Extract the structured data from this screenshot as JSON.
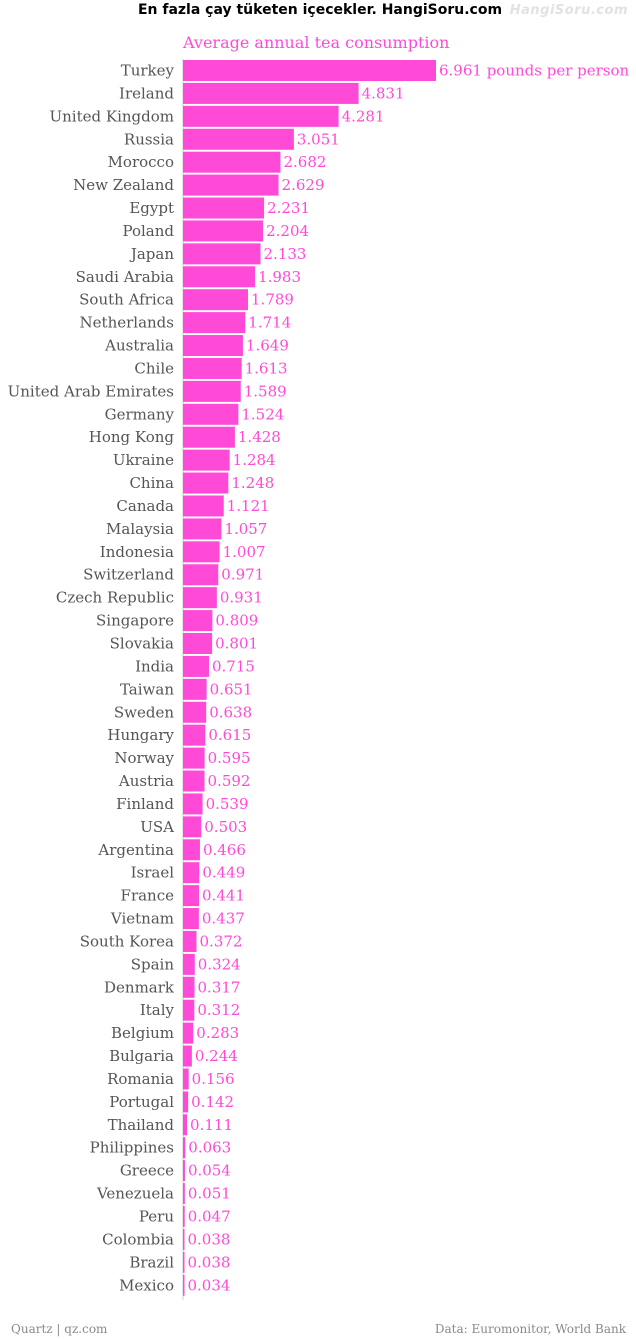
{
  "header": {
    "title": "En fazla çay tüketen içecekler. HangiSoru.com",
    "watermark": "HangiSoru.com"
  },
  "footer": {
    "source_left": "Quartz | qz.com",
    "source_right": "Data: Euromonitor, World Bank"
  },
  "colors": {
    "bar": "#ff4ad8",
    "label": "#555555",
    "value": "#ff4ad8"
  },
  "chart_data": {
    "type": "bar",
    "orientation": "horizontal",
    "title": "Average annual tea consumption",
    "first_value_suffix": " pounds per person",
    "categories": [
      "Turkey",
      "Ireland",
      "United Kingdom",
      "Russia",
      "Morocco",
      "New Zealand",
      "Egypt",
      "Poland",
      "Japan",
      "Saudi Arabia",
      "South Africa",
      "Netherlands",
      "Australia",
      "Chile",
      "United Arab Emirates",
      "Germany",
      "Hong Kong",
      "Ukraine",
      "China",
      "Canada",
      "Malaysia",
      "Indonesia",
      "Switzerland",
      "Czech Republic",
      "Singapore",
      "Slovakia",
      "India",
      "Taiwan",
      "Sweden",
      "Hungary",
      "Norway",
      "Austria",
      "Finland",
      "USA",
      "Argentina",
      "Israel",
      "France",
      "Vietnam",
      "South Korea",
      "Spain",
      "Denmark",
      "Italy",
      "Belgium",
      "Bulgaria",
      "Romania",
      "Portugal",
      "Thailand",
      "Philippines",
      "Greece",
      "Venezuela",
      "Peru",
      "Colombia",
      "Brazil",
      "Mexico"
    ],
    "values": [
      6.961,
      4.831,
      4.281,
      3.051,
      2.682,
      2.629,
      2.231,
      2.204,
      2.133,
      1.983,
      1.789,
      1.714,
      1.649,
      1.613,
      1.589,
      1.524,
      1.428,
      1.284,
      1.248,
      1.121,
      1.057,
      1.007,
      0.971,
      0.931,
      0.809,
      0.801,
      0.715,
      0.651,
      0.638,
      0.615,
      0.595,
      0.592,
      0.539,
      0.503,
      0.466,
      0.449,
      0.441,
      0.437,
      0.372,
      0.324,
      0.317,
      0.312,
      0.283,
      0.244,
      0.156,
      0.142,
      0.111,
      0.063,
      0.054,
      0.051,
      0.047,
      0.038,
      0.038,
      0.034
    ],
    "labels": [
      "6.961",
      "4.831",
      "4.281",
      "3.051",
      "2.682",
      "2.629",
      "2.231",
      "2.204",
      "2.133",
      "1.983",
      "1.789",
      "1.714",
      "1.649",
      "1.613",
      "1.589",
      "1.524",
      "1.428",
      "1.284",
      "1.248",
      "1.121",
      "1.057",
      "1.007",
      "0.971",
      "0.931",
      "0.809",
      "0.801",
      "0.715",
      "0.651",
      "0.638",
      "0.615",
      "0.595",
      "0.592",
      "0.539",
      "0.503",
      "0.466",
      "0.449",
      "0.441",
      "0.437",
      "0.372",
      "0.324",
      "0.317",
      "0.312",
      "0.283",
      "0.244",
      "0.156",
      "0.142",
      "0.111",
      "0.063",
      "0.054",
      "0.051",
      "0.047",
      "0.038",
      "0.038",
      "0.034"
    ],
    "xlim": [
      0,
      6.961
    ],
    "grid": false,
    "legend": "none"
  }
}
